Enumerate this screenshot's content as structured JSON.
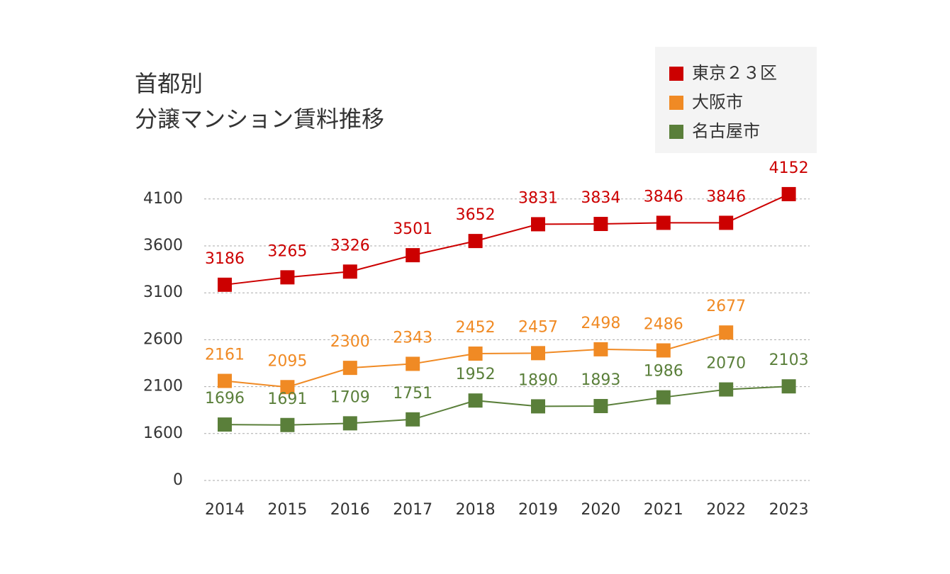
{
  "chart_data": {
    "type": "line",
    "title": "首都別\n分譲マンション賃料推移",
    "categories": [
      "2014",
      "2015",
      "2016",
      "2017",
      "2018",
      "2019",
      "2020",
      "2021",
      "2022",
      "2023"
    ],
    "series": [
      {
        "name": "東京２３区",
        "color": "#cc0000",
        "values": [
          3186,
          3265,
          3326,
          3501,
          3652,
          3831,
          3834,
          3846,
          3846,
          4152
        ]
      },
      {
        "name": "大阪市",
        "color": "#f08a24",
        "values": [
          2161,
          2095,
          2300,
          2343,
          2452,
          2457,
          2498,
          2486,
          2677,
          null
        ]
      },
      {
        "name": "名古屋市",
        "color": "#5a7f3a",
        "values": [
          1696,
          1691,
          1709,
          1751,
          1952,
          1890,
          1893,
          1986,
          2070,
          2103
        ]
      }
    ],
    "ylim": [
      0,
      4100
    ],
    "yticks": [
      0,
      1600,
      2100,
      2600,
      3100,
      3600,
      4100
    ],
    "grid": true,
    "legend": "top-right"
  }
}
